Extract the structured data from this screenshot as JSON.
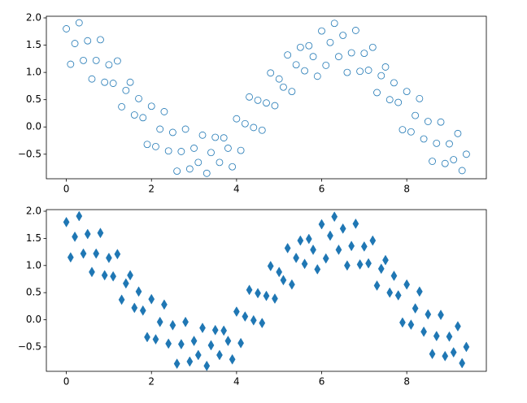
{
  "chart_data": [
    {
      "type": "scatter",
      "marker": "circle",
      "filled": false,
      "color": "#1f77b4",
      "x": [
        0,
        0.1,
        0.2,
        0.3,
        0.4,
        0.5,
        0.6,
        0.7,
        0.8,
        0.9,
        1,
        1.1,
        1.2,
        1.3,
        1.4,
        1.5,
        1.6,
        1.7,
        1.8,
        1.9,
        2,
        2.1,
        2.2,
        2.3,
        2.4,
        2.5,
        2.6,
        2.7,
        2.8,
        2.9,
        3,
        3.1,
        3.2,
        3.3,
        3.4,
        3.5,
        3.6,
        3.7,
        3.8,
        3.9,
        4,
        4.1,
        4.2,
        4.3,
        4.4,
        4.5,
        4.6,
        4.7,
        4.8,
        4.9,
        5,
        5.1,
        5.2,
        5.3,
        5.4,
        5.5,
        5.6,
        5.7,
        5.8,
        5.9,
        6,
        6.1,
        6.2,
        6.3,
        6.4,
        6.5,
        6.6,
        6.7,
        6.8,
        6.9,
        7,
        7.1,
        7.2,
        7.3,
        7.4,
        7.5,
        7.6,
        7.7,
        7.8,
        7.9,
        8,
        8.1,
        8.2,
        8.3,
        8.4,
        8.5,
        8.6,
        8.7,
        8.8,
        8.9,
        9,
        9.1,
        9.2,
        9.3,
        9.4
      ],
      "values": [
        1.8,
        1.15,
        1.53,
        1.91,
        1.22,
        1.58,
        0.88,
        1.22,
        1.6,
        0.82,
        1.14,
        0.8,
        1.21,
        0.37,
        0.67,
        0.82,
        0.22,
        0.52,
        0.17,
        -0.32,
        0.38,
        -0.36,
        -0.04,
        0.28,
        -0.44,
        -0.1,
        -0.81,
        -0.45,
        -0.04,
        -0.77,
        -0.39,
        -0.65,
        -0.15,
        -0.85,
        -0.47,
        -0.19,
        -0.65,
        -0.2,
        -0.39,
        -0.73,
        0.15,
        -0.43,
        0.06,
        0.55,
        -0.01,
        0.49,
        -0.06,
        0.44,
        0.99,
        0.39,
        0.88,
        0.73,
        1.32,
        0.65,
        1.14,
        1.46,
        1.03,
        1.49,
        1.29,
        0.93,
        1.76,
        1.13,
        1.55,
        1.9,
        1.29,
        1.68,
        1.0,
        1.36,
        1.77,
        1.02,
        1.35,
        1.04,
        1.46,
        0.63,
        0.94,
        1.1,
        0.5,
        0.81,
        0.45,
        -0.05,
        0.65,
        -0.09,
        0.21,
        0.52,
        -0.22,
        0.1,
        -0.63,
        -0.3,
        0.09,
        -0.67,
        -0.31,
        -0.6,
        -0.12,
        -0.8,
        -0.5
      ],
      "xlim": [
        -0.47,
        9.87
      ],
      "ylim": [
        -0.95,
        2.03
      ],
      "xticks": [
        0,
        2,
        4,
        6,
        8
      ],
      "yticks": [
        {
          "value": -0.5,
          "label": "−0.5"
        },
        {
          "value": 0,
          "label": "0.0"
        },
        {
          "value": 0.5,
          "label": "0.5"
        },
        {
          "value": 1,
          "label": "1.0"
        },
        {
          "value": 1.5,
          "label": "1.5"
        },
        {
          "value": 2,
          "label": "2.0"
        }
      ]
    },
    {
      "type": "scatter",
      "marker": "thin-diamond",
      "filled": true,
      "color": "#1f77b4",
      "x": [
        0,
        0.1,
        0.2,
        0.3,
        0.4,
        0.5,
        0.6,
        0.7,
        0.8,
        0.9,
        1,
        1.1,
        1.2,
        1.3,
        1.4,
        1.5,
        1.6,
        1.7,
        1.8,
        1.9,
        2,
        2.1,
        2.2,
        2.3,
        2.4,
        2.5,
        2.6,
        2.7,
        2.8,
        2.9,
        3,
        3.1,
        3.2,
        3.3,
        3.4,
        3.5,
        3.6,
        3.7,
        3.8,
        3.9,
        4,
        4.1,
        4.2,
        4.3,
        4.4,
        4.5,
        4.6,
        4.7,
        4.8,
        4.9,
        5,
        5.1,
        5.2,
        5.3,
        5.4,
        5.5,
        5.6,
        5.7,
        5.8,
        5.9,
        6,
        6.1,
        6.2,
        6.3,
        6.4,
        6.5,
        6.6,
        6.7,
        6.8,
        6.9,
        7,
        7.1,
        7.2,
        7.3,
        7.4,
        7.5,
        7.6,
        7.7,
        7.8,
        7.9,
        8,
        8.1,
        8.2,
        8.3,
        8.4,
        8.5,
        8.6,
        8.7,
        8.8,
        8.9,
        9,
        9.1,
        9.2,
        9.3,
        9.4
      ],
      "values": [
        1.8,
        1.15,
        1.53,
        1.91,
        1.22,
        1.58,
        0.88,
        1.22,
        1.6,
        0.82,
        1.14,
        0.8,
        1.21,
        0.37,
        0.67,
        0.82,
        0.22,
        0.52,
        0.17,
        -0.32,
        0.38,
        -0.36,
        -0.04,
        0.28,
        -0.44,
        -0.1,
        -0.81,
        -0.45,
        -0.04,
        -0.77,
        -0.39,
        -0.65,
        -0.15,
        -0.85,
        -0.47,
        -0.19,
        -0.65,
        -0.2,
        -0.39,
        -0.73,
        0.15,
        -0.43,
        0.06,
        0.55,
        -0.01,
        0.49,
        -0.06,
        0.44,
        0.99,
        0.39,
        0.88,
        0.73,
        1.32,
        0.65,
        1.14,
        1.46,
        1.03,
        1.49,
        1.29,
        0.93,
        1.76,
        1.13,
        1.55,
        1.9,
        1.29,
        1.68,
        1.0,
        1.36,
        1.77,
        1.02,
        1.35,
        1.04,
        1.46,
        0.63,
        0.94,
        1.1,
        0.5,
        0.81,
        0.45,
        -0.05,
        0.65,
        -0.09,
        0.21,
        0.52,
        -0.22,
        0.1,
        -0.63,
        -0.3,
        0.09,
        -0.67,
        -0.31,
        -0.6,
        -0.12,
        -0.8,
        -0.5
      ],
      "xlim": [
        -0.47,
        9.87
      ],
      "ylim": [
        -0.95,
        2.03
      ],
      "xticks": [
        0,
        2,
        4,
        6,
        8
      ],
      "yticks": [
        {
          "value": -0.5,
          "label": "−0.5"
        },
        {
          "value": 0,
          "label": "0.0"
        },
        {
          "value": 0.5,
          "label": "0.5"
        },
        {
          "value": 1,
          "label": "1.0"
        },
        {
          "value": 1.5,
          "label": "1.5"
        },
        {
          "value": 2,
          "label": "2.0"
        }
      ]
    }
  ]
}
